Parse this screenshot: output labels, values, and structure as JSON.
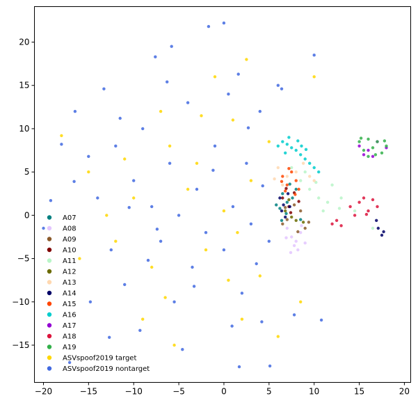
{
  "chart_data": {
    "type": "scatter",
    "title": "",
    "xlabel": "",
    "ylabel": "",
    "xlim": [
      -21,
      20.7
    ],
    "ylim": [
      -19.3,
      24.1
    ],
    "xticks": [
      -20,
      -15,
      -10,
      -5,
      0,
      5,
      10,
      15,
      20
    ],
    "yticks": [
      -15,
      -10,
      -5,
      0,
      5,
      10,
      15,
      20
    ],
    "xtick_labels": [
      "−20",
      "−15",
      "−10",
      "−5",
      "0",
      "5",
      "10",
      "15",
      "20"
    ],
    "ytick_labels": [
      "−15",
      "−10",
      "−5",
      "0",
      "5",
      "10",
      "15",
      "20"
    ],
    "grid": false,
    "legend_position": "lower-left",
    "series": [
      {
        "name": "A07",
        "color": "#008080",
        "points": [
          [
            5.8,
            1.2
          ],
          [
            6.2,
            0.8
          ],
          [
            6.5,
            2.5
          ],
          [
            7.0,
            1.5
          ],
          [
            8.0,
            3.0
          ],
          [
            7.6,
            2.0
          ],
          [
            6.9,
            0.2
          ],
          [
            8.5,
            -0.5
          ],
          [
            7.3,
            3.6
          ],
          [
            6.4,
            -0.6
          ]
        ]
      },
      {
        "name": "A08",
        "color": "#e3c6ff",
        "points": [
          [
            7.5,
            -2.5
          ],
          [
            8.0,
            -3.0
          ],
          [
            8.5,
            -2.0
          ],
          [
            7.0,
            -1.5
          ],
          [
            8.2,
            -4.0
          ],
          [
            7.8,
            -3.5
          ],
          [
            9.0,
            -3.2
          ],
          [
            6.9,
            -2.6
          ],
          [
            8.6,
            -1.2
          ],
          [
            7.4,
            -4.3
          ]
        ]
      },
      {
        "name": "A09",
        "color": "#8b5a2b",
        "points": [
          [
            7.0,
            -0.5
          ],
          [
            8.5,
            0.5
          ],
          [
            9.0,
            -1.5
          ],
          [
            6.5,
            -1.0
          ],
          [
            7.8,
            1.2
          ],
          [
            9.4,
            -0.8
          ],
          [
            8.2,
            -1.9
          ],
          [
            6.8,
            0.9
          ]
        ]
      },
      {
        "name": "A10",
        "color": "#800000",
        "points": [
          [
            6.5,
            2.0
          ],
          [
            7.2,
            1.0
          ],
          [
            7.8,
            2.6
          ],
          [
            6.9,
            3.1
          ],
          [
            8.3,
            1.6
          ],
          [
            7.4,
            0.3
          ]
        ]
      },
      {
        "name": "A11",
        "color": "#b9f5c8",
        "points": [
          [
            8.5,
            4.0
          ],
          [
            9.5,
            3.0
          ],
          [
            10.5,
            2.0
          ],
          [
            11.5,
            1.5
          ],
          [
            12.0,
            3.5
          ],
          [
            13.0,
            2.0
          ],
          [
            14.5,
            0.5
          ],
          [
            16.5,
            -1.5
          ],
          [
            9.0,
            5.0
          ],
          [
            7.5,
            5.5
          ],
          [
            11.0,
            0.5
          ],
          [
            12.8,
            0.8
          ],
          [
            10.2,
            3.8
          ]
        ]
      },
      {
        "name": "A12",
        "color": "#6b6b00",
        "points": [
          [
            6.8,
            0.5
          ],
          [
            7.5,
            -0.2
          ],
          [
            8.8,
            -0.8
          ],
          [
            7.2,
            1.8
          ],
          [
            8.0,
            -0.6
          ]
        ]
      },
      {
        "name": "A13",
        "color": "#ffd8b0",
        "points": [
          [
            6.0,
            5.5
          ],
          [
            7.0,
            4.5
          ],
          [
            8.0,
            5.0
          ],
          [
            9.5,
            4.5
          ],
          [
            6.5,
            3.5
          ],
          [
            8.8,
            6.0
          ],
          [
            10.0,
            4.0
          ],
          [
            5.6,
            4.2
          ]
        ]
      },
      {
        "name": "A14",
        "color": "#000066",
        "points": [
          [
            6.2,
            2.0
          ],
          [
            6.6,
            1.2
          ],
          [
            7.1,
            2.5
          ],
          [
            6.4,
            0.5
          ],
          [
            7.3,
            1.0
          ],
          [
            17.1,
            -1.5
          ],
          [
            17.5,
            -2.3
          ],
          [
            16.9,
            -0.6
          ],
          [
            17.7,
            -1.9
          ],
          [
            6.8,
            -0.2
          ]
        ]
      },
      {
        "name": "A15",
        "color": "#ff4500",
        "points": [
          [
            6.5,
            4.5
          ],
          [
            7.0,
            3.5
          ],
          [
            7.5,
            5.0
          ],
          [
            8.0,
            4.0
          ],
          [
            6.8,
            2.8
          ],
          [
            8.3,
            3.0
          ],
          [
            7.2,
            5.4
          ],
          [
            7.9,
            2.4
          ],
          [
            6.4,
            3.9
          ]
        ]
      },
      {
        "name": "A16",
        "color": "#00cdcd",
        "points": [
          [
            6.0,
            8.0
          ],
          [
            6.5,
            8.5
          ],
          [
            7.0,
            8.2
          ],
          [
            7.5,
            7.8
          ],
          [
            8.0,
            7.5
          ],
          [
            8.5,
            7.0
          ],
          [
            9.0,
            6.5
          ],
          [
            9.5,
            6.0
          ],
          [
            10.0,
            5.5
          ],
          [
            10.5,
            5.0
          ],
          [
            7.2,
            9.0
          ],
          [
            8.2,
            8.6
          ],
          [
            6.8,
            7.2
          ],
          [
            9.1,
            7.6
          ],
          [
            8.6,
            8.0
          ]
        ]
      },
      {
        "name": "A17",
        "color": "#9400d3",
        "points": [
          [
            15.0,
            8.0
          ],
          [
            16.0,
            7.5
          ],
          [
            17.0,
            8.5
          ],
          [
            15.5,
            7.0
          ],
          [
            16.5,
            6.8
          ],
          [
            18.0,
            7.8
          ]
        ]
      },
      {
        "name": "A18",
        "color": "#dc143c",
        "points": [
          [
            14.0,
            1.0
          ],
          [
            15.0,
            1.5
          ],
          [
            16.0,
            0.5
          ],
          [
            17.0,
            1.0
          ],
          [
            12.0,
            -1.0
          ],
          [
            13.0,
            -1.2
          ],
          [
            15.5,
            2.0
          ],
          [
            16.5,
            1.8
          ],
          [
            14.5,
            0.0
          ],
          [
            12.5,
            -0.6
          ],
          [
            15.8,
            0.1
          ]
        ]
      },
      {
        "name": "A19",
        "color": "#32b04a",
        "points": [
          [
            15.0,
            8.5
          ],
          [
            16.0,
            8.8
          ],
          [
            17.0,
            8.5
          ],
          [
            18.0,
            8.0
          ],
          [
            15.5,
            7.5
          ],
          [
            16.5,
            7.8
          ],
          [
            17.5,
            7.2
          ],
          [
            16.0,
            6.8
          ],
          [
            15.2,
            8.9
          ],
          [
            17.8,
            8.6
          ],
          [
            16.8,
            7.0
          ]
        ]
      },
      {
        "name": "ASVspoof2019 target",
        "color": "#ffd700",
        "points": [
          [
            -18.0,
            9.2
          ],
          [
            -15.0,
            5.0
          ],
          [
            -12.0,
            -3.0
          ],
          [
            -10.0,
            2.0
          ],
          [
            -8.0,
            -6.0
          ],
          [
            -6.0,
            8.0
          ],
          [
            -4.0,
            3.0
          ],
          [
            -2.0,
            -4.0
          ],
          [
            0.0,
            0.5
          ],
          [
            1.0,
            11.0
          ],
          [
            2.0,
            -12.0
          ],
          [
            3.0,
            4.0
          ],
          [
            -5.5,
            -15.0
          ],
          [
            -1.0,
            16.0
          ],
          [
            4.0,
            -7.0
          ],
          [
            -7.0,
            12.0
          ],
          [
            10.0,
            16.0
          ],
          [
            -9.0,
            -12.0
          ],
          [
            6.0,
            -14.0
          ],
          [
            -3.0,
            6.0
          ],
          [
            -13.0,
            0.0
          ],
          [
            1.5,
            -2.0
          ],
          [
            -11.0,
            6.5
          ],
          [
            2.5,
            18.0
          ],
          [
            -6.5,
            -9.5
          ],
          [
            8.5,
            -10.0
          ],
          [
            -16.0,
            -5.0
          ],
          [
            0.5,
            -7.5
          ],
          [
            5.0,
            8.5
          ],
          [
            -2.5,
            11.5
          ]
        ]
      },
      {
        "name": "ASVspoof2019 nontarget",
        "color": "#4169e1",
        "points": [
          [
            -20.0,
            -1.5
          ],
          [
            -19.2,
            1.7
          ],
          [
            -18.0,
            8.2
          ],
          [
            -17.1,
            -17.0
          ],
          [
            -16.5,
            12.0
          ],
          [
            -15.0,
            6.8
          ],
          [
            -14.0,
            2.0
          ],
          [
            -13.3,
            14.6
          ],
          [
            -12.5,
            -4.0
          ],
          [
            -12.0,
            8.0
          ],
          [
            -11.0,
            -8.0
          ],
          [
            -10.0,
            4.0
          ],
          [
            -9.3,
            -13.3
          ],
          [
            -9.0,
            10.0
          ],
          [
            -8.0,
            1.0
          ],
          [
            -7.6,
            18.3
          ],
          [
            -7.0,
            -3.0
          ],
          [
            -6.0,
            6.0
          ],
          [
            -5.5,
            -10.0
          ],
          [
            -5.0,
            0.0
          ],
          [
            -5.8,
            19.5
          ],
          [
            -4.0,
            13.0
          ],
          [
            -3.5,
            -6.0
          ],
          [
            -3.0,
            3.0
          ],
          [
            -2.0,
            -2.0
          ],
          [
            -1.7,
            21.8
          ],
          [
            -1.0,
            8.0
          ],
          [
            0.0,
            22.2
          ],
          [
            0.0,
            -4.0
          ],
          [
            0.5,
            14.0
          ],
          [
            1.0,
            1.0
          ],
          [
            1.7,
            -17.5
          ],
          [
            2.0,
            -9.0
          ],
          [
            2.5,
            6.0
          ],
          [
            3.0,
            -1.0
          ],
          [
            4.0,
            12.0
          ],
          [
            4.2,
            -12.3
          ],
          [
            5.0,
            -3.0
          ],
          [
            5.1,
            -17.4
          ],
          [
            6.0,
            15.0
          ],
          [
            6.4,
            14.6
          ],
          [
            7.8,
            -11.5
          ],
          [
            10.0,
            18.5
          ],
          [
            10.8,
            -12.1
          ],
          [
            -10.5,
            0.9
          ],
          [
            -14.8,
            -10.0
          ],
          [
            -3.3,
            -8.2
          ],
          [
            2.7,
            10.1
          ],
          [
            -8.4,
            -5.2
          ],
          [
            -1.2,
            5.2
          ],
          [
            3.6,
            -5.6
          ],
          [
            -6.3,
            15.4
          ],
          [
            -11.5,
            11.2
          ],
          [
            -16.6,
            3.9
          ],
          [
            0.9,
            -12.8
          ],
          [
            -4.6,
            -15.5
          ],
          [
            4.3,
            3.4
          ],
          [
            -12.7,
            -14.1
          ],
          [
            1.6,
            16.3
          ],
          [
            -7.4,
            -1.6
          ]
        ]
      }
    ],
    "legend": [
      "A07",
      "A08",
      "A09",
      "A10",
      "A11",
      "A12",
      "A13",
      "A14",
      "A15",
      "A16",
      "A17",
      "A18",
      "A19",
      "ASVspoof2019 target",
      "ASVspoof2019 nontarget"
    ]
  }
}
